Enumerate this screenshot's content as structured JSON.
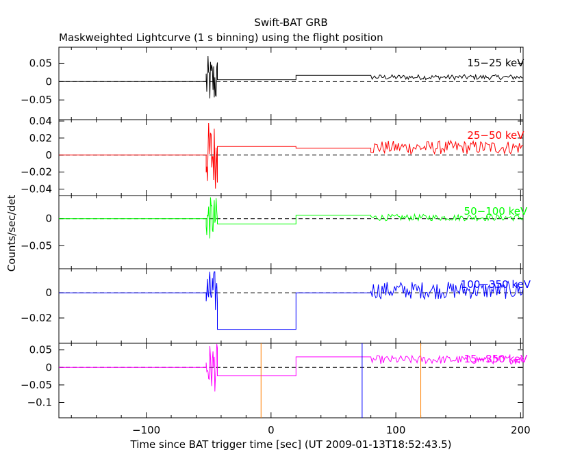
{
  "header": {
    "title": "Swift-BAT GRB",
    "subtitle": "Maskweighted Lightcurve (1 s binning) using the flight position"
  },
  "axes": {
    "xlabel": "Time since BAT trigger time [sec] (UT 2009-01-13T18:52:43.5)",
    "ylabel": "Counts/sec/det",
    "x_ticks": [
      "−100",
      "0",
      "100",
      "200"
    ]
  },
  "chart_data": {
    "type": "line",
    "step": true,
    "xlim": [
      -170,
      202
    ],
    "x_ticks": [
      -100,
      0,
      100,
      200
    ],
    "xlabel": "Time since BAT trigger time [sec] (UT 2009-01-13T18:52:43.5)",
    "ylabel": "Counts/sec/det",
    "title": "Swift-BAT GRB",
    "subtitle": "Maskweighted Lightcurve (1 s binning) using the flight position",
    "panels": [
      {
        "name": "15−25 keV",
        "color": "#000000",
        "ylim": [
          -0.1,
          0.09
        ],
        "y_ticks": [
          -0.05,
          0,
          0.05
        ],
        "y_tick_labels": [
          "−0.05",
          "0",
          "0.05"
        ],
        "segments": [
          {
            "x": [
              -170,
              -52
            ],
            "y": 0
          },
          {
            "x": [
              -52,
              -43
            ],
            "burst": true,
            "amplitude": 0.07
          },
          {
            "x": [
              -43,
              20
            ],
            "y": 0.005
          },
          {
            "x": [
              20,
              80
            ],
            "y": 0.017
          },
          {
            "x": [
              80,
              202
            ],
            "noise": true,
            "mean": 0.012,
            "amplitude": 0.007
          }
        ]
      },
      {
        "name": "25−50 keV",
        "color": "#ff0000",
        "ylim": [
          -0.046,
          0.04
        ],
        "y_ticks": [
          -0.04,
          -0.02,
          0,
          0.02,
          0.04
        ],
        "y_tick_labels": [
          "−0.04",
          "−0.02",
          "0",
          "0.02",
          "0.04"
        ],
        "segments": [
          {
            "x": [
              -170,
              -52
            ],
            "y": 0
          },
          {
            "x": [
              -52,
              -43
            ],
            "burst": true,
            "amplitude": 0.04
          },
          {
            "x": [
              -43,
              20
            ],
            "y": 0.01
          },
          {
            "x": [
              20,
              80
            ],
            "y": 0.008
          },
          {
            "x": [
              80,
              202
            ],
            "noise": true,
            "mean": 0.009,
            "amplitude": 0.008
          }
        ]
      },
      {
        "name": "50−100 keV",
        "color": "#00ff00",
        "ylim": [
          -0.09,
          0.04
        ],
        "y_ticks": [
          -0.05,
          0
        ],
        "y_tick_labels": [
          "−0.05",
          "0"
        ],
        "segments": [
          {
            "x": [
              -170,
              -52
            ],
            "y": 0
          },
          {
            "x": [
              -52,
              -43
            ],
            "burst": true,
            "amplitude": 0.04
          },
          {
            "x": [
              -43,
              20
            ],
            "y": -0.01
          },
          {
            "x": [
              20,
              80
            ],
            "y": 0.006
          },
          {
            "x": [
              80,
              202
            ],
            "noise": true,
            "mean": 0.002,
            "amplitude": 0.006
          }
        ]
      },
      {
        "name": "100−350 keV",
        "color": "#0000ff",
        "ylim": [
          -0.039,
          0.018
        ],
        "y_ticks": [
          -0.02,
          0
        ],
        "y_tick_labels": [
          "−0.02",
          "0"
        ],
        "segments": [
          {
            "x": [
              -170,
              -52
            ],
            "y": 0
          },
          {
            "x": [
              -52,
              -43
            ],
            "burst": true,
            "amplitude": 0.018
          },
          {
            "x": [
              -43,
              20
            ],
            "y": -0.029
          },
          {
            "x": [
              20,
              80
            ],
            "y": 0
          },
          {
            "x": [
              80,
              202
            ],
            "noise": true,
            "mean": 0.002,
            "amplitude": 0.007
          }
        ]
      },
      {
        "name": "15−350 keV",
        "color": "#ff00ff",
        "ylim": [
          -0.14,
          0.065
        ],
        "y_ticks": [
          -0.1,
          -0.05,
          0,
          0.05
        ],
        "y_tick_labels": [
          "−0.1",
          "−0.05",
          "0",
          "0.05"
        ],
        "segments": [
          {
            "x": [
              -170,
              -52
            ],
            "y": 0
          },
          {
            "x": [
              -52,
              -43
            ],
            "burst": true,
            "amplitude": 0.07
          },
          {
            "x": [
              -43,
              20
            ],
            "y": -0.024
          },
          {
            "x": [
              20,
              80
            ],
            "y": 0.03
          },
          {
            "x": [
              80,
              202
            ],
            "noise": true,
            "mean": 0.022,
            "amplitude": 0.012
          }
        ],
        "vertical_lines": [
          {
            "x": -8,
            "color": "#ff7f00"
          },
          {
            "x": 73,
            "color": "#0000ff"
          },
          {
            "x": 120,
            "color": "#ff7f00"
          }
        ]
      }
    ]
  }
}
